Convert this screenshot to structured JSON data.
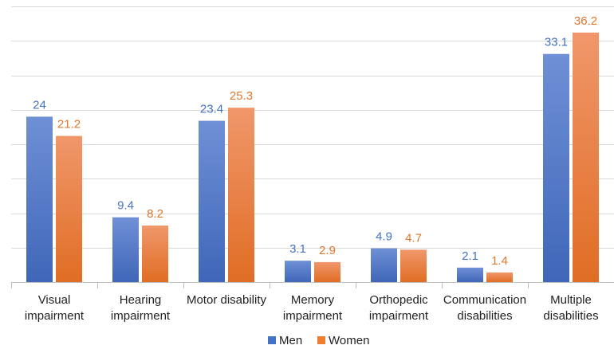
{
  "chart_data": {
    "type": "bar",
    "categories": [
      [
        "Visual",
        "impairment"
      ],
      [
        "Hearing",
        "impairment"
      ],
      [
        "Motor disability"
      ],
      [
        "Memory",
        "impairment"
      ],
      [
        "Orthopedic",
        "impairment"
      ],
      [
        "Communication",
        "disabilities"
      ],
      [
        "Multiple",
        "disabilities"
      ]
    ],
    "series": [
      {
        "name": "Men",
        "values": [
          24,
          9.4,
          23.4,
          3.1,
          4.9,
          2.1,
          33.1
        ],
        "color": "#4472c4",
        "label_color": "#4472c4"
      },
      {
        "name": "Women",
        "values": [
          21.2,
          8.2,
          25.3,
          2.9,
          4.7,
          1.4,
          36.2
        ],
        "color": "#ed7d31",
        "label_color": "#e0772c"
      }
    ],
    "data_labels": [
      [
        "24",
        "9.4",
        "23.4",
        "3.1",
        "4.9",
        "2.1",
        "33.1"
      ],
      [
        "21.2",
        "8.2",
        "25.3",
        "2.9",
        "4.7",
        "1.4",
        "36.2"
      ]
    ],
    "ylim": [
      0,
      40
    ],
    "y_gridline_step": 5,
    "y_tick_labels_shown": false,
    "grid": true,
    "legend_position": "bottom",
    "title": "",
    "xlabel": "",
    "ylabel": ""
  }
}
